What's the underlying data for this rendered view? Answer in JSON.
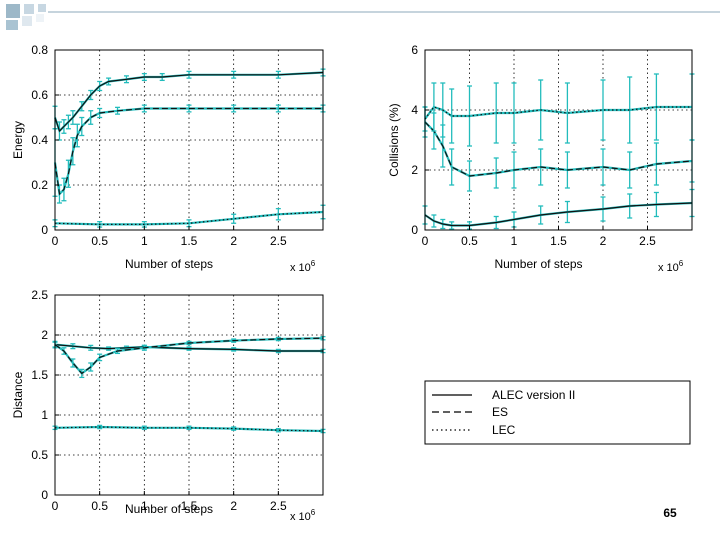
{
  "slide": {
    "page_number": "65",
    "decor_colors": [
      "#9db8c8",
      "#c7d7e2",
      "#c7d7e2",
      "#a9c3d2",
      "#dfe8ef",
      "#eef3f7"
    ],
    "decor_line_color": "#b3c6d2"
  },
  "colors": {
    "axis": "#000000",
    "grid": "#000000",
    "cyan": "#22bcbc",
    "black_line": "#111111"
  },
  "chart_data": [
    {
      "id": "energy",
      "type": "line",
      "title": "",
      "xlabel": "Number of steps",
      "ylabel": "Energy",
      "x_multiplier": "x 10",
      "x_exponent": "6",
      "xlim": [
        0,
        3
      ],
      "ylim": [
        0,
        0.8
      ],
      "xticks": [
        0,
        0.5,
        1,
        1.5,
        2,
        2.5
      ],
      "xtick_labels": [
        "0",
        "0.5",
        "1",
        "1.5",
        "2",
        "2.5"
      ],
      "yticks": [
        0,
        0.2,
        0.4,
        0.6,
        0.8
      ],
      "ytick_labels": [
        "0",
        "0.2",
        "0.4",
        "0.6",
        "0.8"
      ],
      "grid": true,
      "series": [
        {
          "name": "ALEC version II",
          "style": "solid",
          "x": [
            0,
            0.05,
            0.1,
            0.15,
            0.2,
            0.3,
            0.4,
            0.5,
            0.6,
            0.8,
            1.0,
            1.2,
            1.5,
            2.0,
            2.5,
            3.0
          ],
          "y": [
            0.5,
            0.44,
            0.46,
            0.48,
            0.5,
            0.55,
            0.6,
            0.64,
            0.66,
            0.67,
            0.68,
            0.68,
            0.69,
            0.69,
            0.69,
            0.7
          ],
          "err": [
            0.05,
            0.04,
            0.03,
            0.03,
            0.03,
            0.02,
            0.02,
            0.02,
            0.015,
            0.015,
            0.015,
            0.015,
            0.015,
            0.015,
            0.015,
            0.015
          ]
        },
        {
          "name": "ES",
          "style": "dashed",
          "x": [
            0,
            0.05,
            0.1,
            0.15,
            0.2,
            0.25,
            0.3,
            0.4,
            0.5,
            0.7,
            1.0,
            1.5,
            2.0,
            2.5,
            3.0
          ],
          "y": [
            0.3,
            0.16,
            0.18,
            0.25,
            0.35,
            0.42,
            0.46,
            0.5,
            0.52,
            0.53,
            0.54,
            0.54,
            0.54,
            0.54,
            0.54
          ],
          "err": [
            0.15,
            0.04,
            0.05,
            0.06,
            0.06,
            0.05,
            0.04,
            0.03,
            0.02,
            0.015,
            0.015,
            0.015,
            0.015,
            0.015,
            0.015
          ]
        },
        {
          "name": "LEC",
          "style": "dotted",
          "x": [
            0,
            0.5,
            1.0,
            1.5,
            2.0,
            2.5,
            3.0
          ],
          "y": [
            0.03,
            0.025,
            0.025,
            0.03,
            0.05,
            0.07,
            0.08
          ],
          "err": [
            0.015,
            0.012,
            0.012,
            0.015,
            0.02,
            0.025,
            0.03
          ]
        }
      ]
    },
    {
      "id": "collisions",
      "type": "line",
      "title": "",
      "xlabel": "Number of steps",
      "ylabel": "Collisions (%)",
      "x_multiplier": "x 10",
      "x_exponent": "6",
      "xlim": [
        0,
        3
      ],
      "ylim": [
        0,
        6
      ],
      "xticks": [
        0,
        0.5,
        1,
        1.5,
        2,
        2.5
      ],
      "xtick_labels": [
        "0",
        "0.5",
        "1",
        "1.5",
        "2",
        "2.5"
      ],
      "yticks": [
        0,
        2,
        4,
        6
      ],
      "ytick_labels": [
        "0",
        "2",
        "4",
        "6"
      ],
      "grid": true,
      "series": [
        {
          "name": "ALEC version II",
          "style": "solid",
          "x": [
            0,
            0.1,
            0.2,
            0.3,
            0.5,
            0.8,
            1.0,
            1.3,
            1.6,
            2.0,
            2.3,
            2.6,
            3.0
          ],
          "y": [
            0.5,
            0.3,
            0.2,
            0.15,
            0.15,
            0.25,
            0.35,
            0.5,
            0.6,
            0.7,
            0.8,
            0.85,
            0.9
          ],
          "err": [
            0.3,
            0.2,
            0.15,
            0.12,
            0.12,
            0.2,
            0.25,
            0.3,
            0.35,
            0.4,
            0.4,
            0.4,
            0.45
          ]
        },
        {
          "name": "ES",
          "style": "dashed",
          "x": [
            0,
            0.1,
            0.2,
            0.3,
            0.5,
            0.8,
            1.0,
            1.3,
            1.6,
            2.0,
            2.3,
            2.6,
            3.0
          ],
          "y": [
            3.6,
            3.3,
            2.8,
            2.1,
            1.8,
            1.9,
            2.0,
            2.1,
            2.0,
            2.1,
            2.0,
            2.2,
            2.3
          ],
          "err": [
            0.5,
            0.6,
            0.7,
            0.6,
            0.5,
            0.5,
            0.6,
            0.6,
            0.6,
            0.6,
            0.6,
            0.7,
            0.7
          ]
        },
        {
          "name": "LEC",
          "style": "dotted",
          "x": [
            0,
            0.1,
            0.2,
            0.3,
            0.5,
            0.8,
            1.0,
            1.3,
            1.6,
            2.0,
            2.3,
            2.6,
            3.0
          ],
          "y": [
            3.7,
            4.1,
            4.0,
            3.8,
            3.8,
            3.9,
            3.9,
            4.0,
            3.9,
            4.0,
            4.0,
            4.1,
            4.1
          ],
          "err": [
            0.4,
            0.8,
            0.9,
            0.9,
            1.0,
            1.0,
            1.0,
            1.0,
            1.0,
            1.0,
            1.1,
            1.1,
            1.1
          ]
        }
      ]
    },
    {
      "id": "distance",
      "type": "line",
      "title": "",
      "xlabel": "Number of steps",
      "ylabel": "Distance",
      "x_multiplier": "x 10",
      "x_exponent": "6",
      "xlim": [
        0,
        3
      ],
      "ylim": [
        0,
        2.5
      ],
      "xticks": [
        0,
        0.5,
        1,
        1.5,
        2,
        2.5
      ],
      "xtick_labels": [
        "0",
        "0.5",
        "1",
        "1.5",
        "2",
        "2.5"
      ],
      "yticks": [
        0,
        0.5,
        1,
        1.5,
        2,
        2.5
      ],
      "ytick_labels": [
        "0",
        "0.5",
        "1",
        "1.5",
        "2",
        "2.5"
      ],
      "grid": true,
      "series": [
        {
          "name": "ALEC version II",
          "style": "solid",
          "x": [
            0,
            0.2,
            0.4,
            0.6,
            0.8,
            1.0,
            1.5,
            2.0,
            2.5,
            3.0
          ],
          "y": [
            1.88,
            1.86,
            1.84,
            1.83,
            1.84,
            1.85,
            1.83,
            1.82,
            1.8,
            1.8
          ],
          "err": [
            0.03,
            0.03,
            0.03,
            0.02,
            0.02,
            0.02,
            0.02,
            0.02,
            0.02,
            0.02
          ]
        },
        {
          "name": "ES",
          "style": "dashed",
          "x": [
            0,
            0.1,
            0.2,
            0.3,
            0.4,
            0.5,
            0.7,
            1.0,
            1.5,
            2.0,
            2.5,
            3.0
          ],
          "y": [
            1.88,
            1.8,
            1.65,
            1.52,
            1.6,
            1.72,
            1.8,
            1.84,
            1.9,
            1.93,
            1.95,
            1.96
          ],
          "err": [
            0.04,
            0.04,
            0.05,
            0.05,
            0.05,
            0.04,
            0.03,
            0.03,
            0.02,
            0.02,
            0.02,
            0.02
          ]
        },
        {
          "name": "LEC",
          "style": "dotted",
          "x": [
            0,
            0.5,
            1.0,
            1.5,
            2.0,
            2.5,
            3.0
          ],
          "y": [
            0.84,
            0.85,
            0.84,
            0.84,
            0.83,
            0.81,
            0.8
          ],
          "err": [
            0.02,
            0.02,
            0.02,
            0.02,
            0.02,
            0.02,
            0.02
          ]
        }
      ]
    }
  ],
  "legend": {
    "entries": [
      {
        "label": "ALEC version II",
        "style": "solid"
      },
      {
        "label": "ES",
        "style": "dashed"
      },
      {
        "label": "LEC",
        "style": "dotted"
      }
    ]
  }
}
